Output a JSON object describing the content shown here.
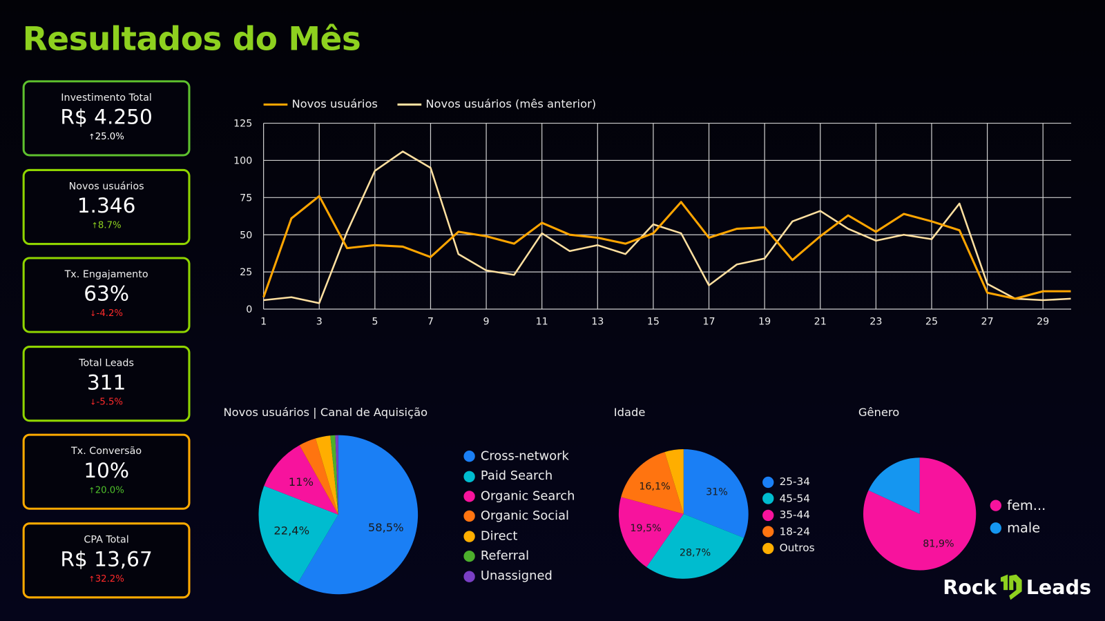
{
  "header": {
    "title": "Resultados do Mês"
  },
  "kpis": [
    {
      "label": "Investimento Total",
      "value": "R$ 4.250",
      "delta": "25.0%",
      "direction": "up",
      "delta_color": "#ffffff",
      "border": "#5ec12e"
    },
    {
      "label": "Novos usuários",
      "value": "1.346",
      "delta": "8.7%",
      "direction": "up",
      "delta_color": "#8ed11f",
      "border": "#8fd400"
    },
    {
      "label": "Tx. Engajamento",
      "value": "63%",
      "delta": "-4.2%",
      "direction": "down",
      "delta_color": "#ff2a2a",
      "border": "#8fd400"
    },
    {
      "label": "Total Leads",
      "value": "311",
      "delta": "-5.5%",
      "direction": "down",
      "delta_color": "#ff2a2a",
      "border": "#8fd400"
    },
    {
      "label": "Tx. Conversão",
      "value": "10%",
      "delta": "20.0%",
      "direction": "up",
      "delta_color": "#4fbf2a",
      "border": "#ffaa00"
    },
    {
      "label": "CPA Total",
      "value": "R$ 13,67",
      "delta": "32.2%",
      "direction": "up",
      "delta_color": "#ff2a2a",
      "border": "#ffaa00"
    }
  ],
  "chart_data": [
    {
      "type": "line",
      "x": [
        1,
        2,
        3,
        4,
        5,
        6,
        7,
        8,
        9,
        10,
        11,
        12,
        13,
        14,
        15,
        16,
        17,
        18,
        19,
        20,
        21,
        22,
        23,
        24,
        25,
        26,
        27,
        28,
        29,
        30
      ],
      "xticks": [
        1,
        3,
        5,
        7,
        9,
        11,
        13,
        15,
        17,
        19,
        21,
        23,
        25,
        27,
        29
      ],
      "yticks": [
        0,
        25,
        50,
        75,
        100,
        125
      ],
      "ylim": [
        0,
        125
      ],
      "grid": true,
      "legend": "top-left",
      "series": [
        {
          "name": "Novos usuários",
          "color": "#ffa500",
          "values": [
            8,
            61,
            76,
            41,
            43,
            42,
            35,
            52,
            49,
            44,
            58,
            50,
            48,
            44,
            51,
            72,
            48,
            54,
            55,
            33,
            49,
            63,
            52,
            64,
            59,
            53,
            11,
            7,
            12,
            12
          ]
        },
        {
          "name": "Novos usuários (mês anterior)",
          "color": "#ffe0a0",
          "values": [
            6,
            8,
            4,
            52,
            93,
            106,
            95,
            37,
            26,
            23,
            51,
            39,
            43,
            37,
            57,
            51,
            16,
            30,
            34,
            59,
            66,
            54,
            46,
            50,
            47,
            71,
            17,
            7,
            6,
            7
          ]
        }
      ]
    },
    {
      "type": "pie",
      "title": "Novos usuários | Canal de Aquisição",
      "legend": "right",
      "slices": [
        {
          "name": "Cross-network",
          "value": 58.5,
          "label": "58,5%",
          "color": "#1a7ff5"
        },
        {
          "name": "Paid Search",
          "value": 22.4,
          "label": "22,4%",
          "color": "#00bccf"
        },
        {
          "name": "Organic Search",
          "value": 11,
          "label": "11%",
          "color": "#f7139d"
        },
        {
          "name": "Organic Social",
          "value": 3.5,
          "label": "",
          "color": "#ff7410"
        },
        {
          "name": "Direct",
          "value": 3,
          "label": "",
          "color": "#ffae00"
        },
        {
          "name": "Referral",
          "value": 1,
          "label": "",
          "color": "#4caf2c"
        },
        {
          "name": "Unassigned",
          "value": 0.6,
          "label": "",
          "color": "#7a3fc4"
        }
      ]
    },
    {
      "type": "pie",
      "title": "Idade",
      "legend": "right",
      "slices": [
        {
          "name": "25-34",
          "value": 31,
          "label": "31%",
          "color": "#1a7ff5"
        },
        {
          "name": "45-54",
          "value": 28.7,
          "label": "28,7%",
          "color": "#00bccf"
        },
        {
          "name": "35-44",
          "value": 19.5,
          "label": "19,5%",
          "color": "#f7139d"
        },
        {
          "name": "18-24",
          "value": 16.1,
          "label": "16,1%",
          "color": "#ff7410"
        },
        {
          "name": "Outros",
          "value": 4.7,
          "label": "",
          "color": "#ffae00"
        }
      ]
    },
    {
      "type": "pie",
      "title": "Gênero",
      "legend": "right",
      "slices": [
        {
          "name": "fem...",
          "value": 81.9,
          "label": "81,9%",
          "color": "#f7139d"
        },
        {
          "name": "male",
          "value": 18.1,
          "label": "",
          "color": "#1596f0"
        }
      ]
    }
  ],
  "brand": {
    "logo_left": "Rock",
    "logo_right": "Leads",
    "color": "#8ed11f"
  }
}
